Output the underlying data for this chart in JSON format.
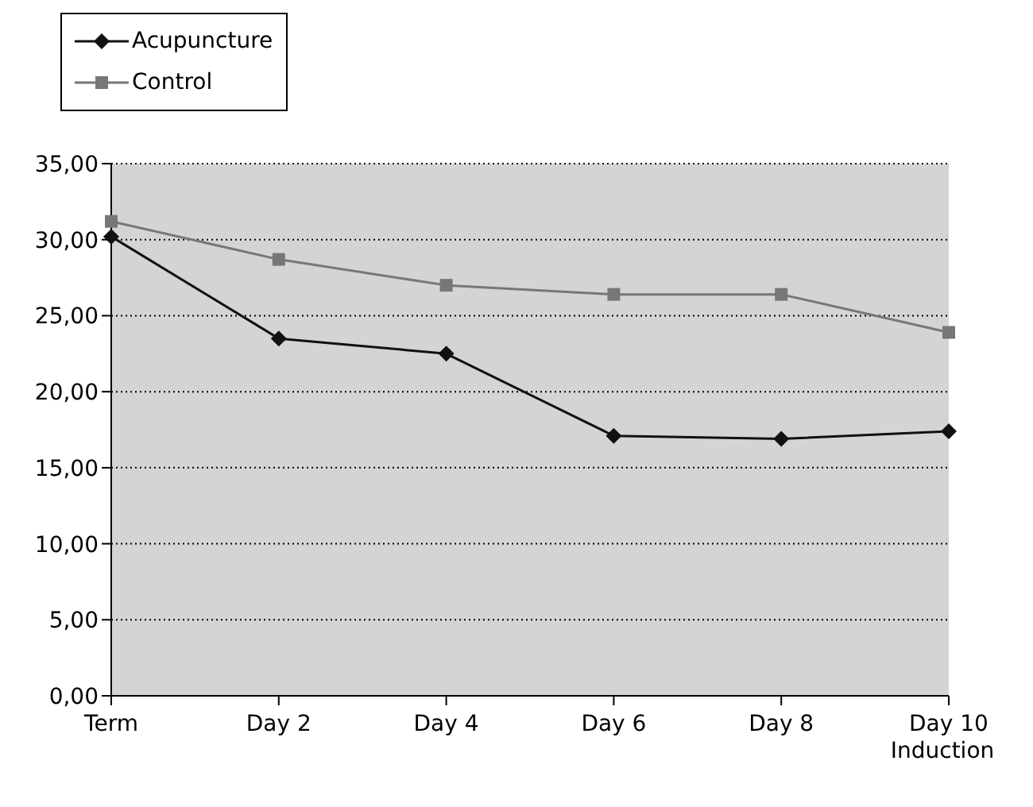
{
  "chart_data": {
    "type": "line",
    "categories": [
      "Term",
      "Day 2",
      "Day 4",
      "Day 6",
      "Day 8",
      "Day 10\nInduction"
    ],
    "series": [
      {
        "name": "Acupuncture",
        "color": "#111111",
        "marker": "diamond",
        "values": [
          30.2,
          23.5,
          22.5,
          17.1,
          16.9,
          17.4
        ]
      },
      {
        "name": "Control",
        "color": "#777777",
        "marker": "square",
        "values": [
          31.2,
          28.7,
          27.0,
          26.4,
          26.4,
          23.9
        ]
      }
    ],
    "ylim": [
      0,
      35
    ],
    "yticks": [
      {
        "value": 0,
        "label": "0,00"
      },
      {
        "value": 5,
        "label": "5,00"
      },
      {
        "value": 10,
        "label": "10,00"
      },
      {
        "value": 15,
        "label": "15,00"
      },
      {
        "value": 20,
        "label": "20,00"
      },
      {
        "value": 25,
        "label": "25,00"
      },
      {
        "value": 30,
        "label": "30,00"
      },
      {
        "value": 35,
        "label": "35,00"
      }
    ],
    "grid": "y",
    "legend": "top left",
    "line_style": "solid"
  }
}
